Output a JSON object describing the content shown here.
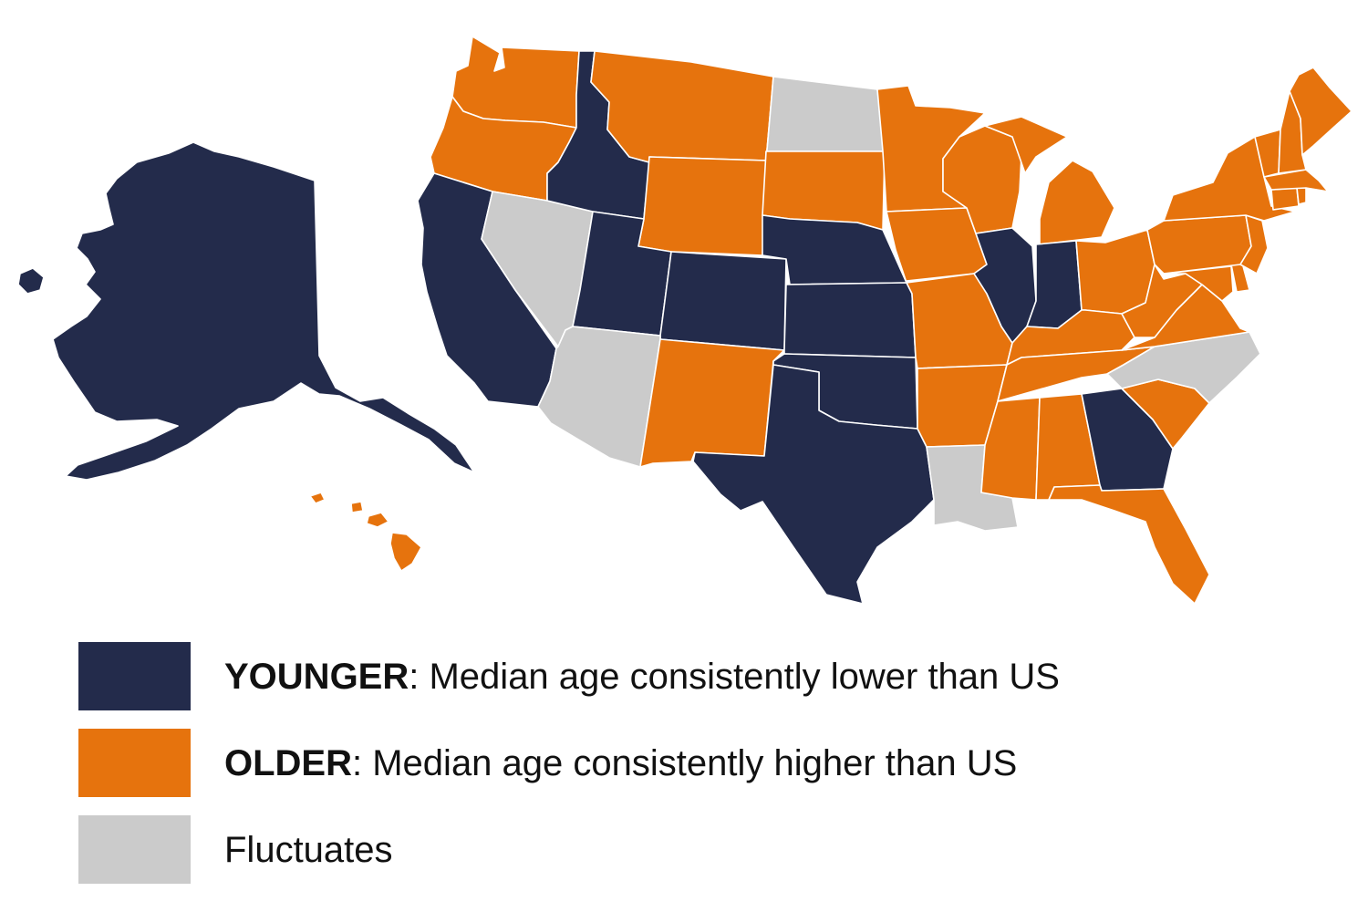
{
  "colors": {
    "younger": "#232b4b",
    "older": "#e6730d",
    "fluctuates": "#cbcbcb",
    "border": "#ffffff"
  },
  "legend": [
    {
      "key": "younger",
      "label": "YOUNGER",
      "separator": ":",
      "description": " Median age consistently lower than US"
    },
    {
      "key": "older",
      "label": "OLDER",
      "separator": ":",
      "description": " Median age consistently higher than US"
    },
    {
      "key": "fluctuates",
      "label": "",
      "separator": "",
      "description": "Fluctuates"
    }
  ],
  "states": {
    "AK": "younger",
    "HI": "older",
    "WA": "older",
    "OR": "older",
    "CA": "younger",
    "NV": "fluctuates",
    "ID": "younger",
    "MT": "older",
    "WY": "older",
    "UT": "younger",
    "CO": "younger",
    "AZ": "fluctuates",
    "NM": "older",
    "ND": "fluctuates",
    "SD": "older",
    "NE": "younger",
    "KS": "younger",
    "OK": "younger",
    "TX": "younger",
    "MN": "older",
    "IA": "older",
    "MO": "older",
    "AR": "older",
    "LA": "fluctuates",
    "WI": "older",
    "IL": "younger",
    "MI": "older",
    "IN": "younger",
    "OH": "older",
    "KY": "older",
    "TN": "older",
    "MS": "older",
    "AL": "older",
    "GA": "younger",
    "FL": "older",
    "SC": "older",
    "NC": "fluctuates",
    "VA": "older",
    "WV": "older",
    "MD": "older",
    "DE": "older",
    "PA": "older",
    "NJ": "older",
    "NY": "older",
    "CT": "older",
    "RI": "older",
    "MA": "older",
    "VT": "older",
    "NH": "older",
    "ME": "older"
  }
}
